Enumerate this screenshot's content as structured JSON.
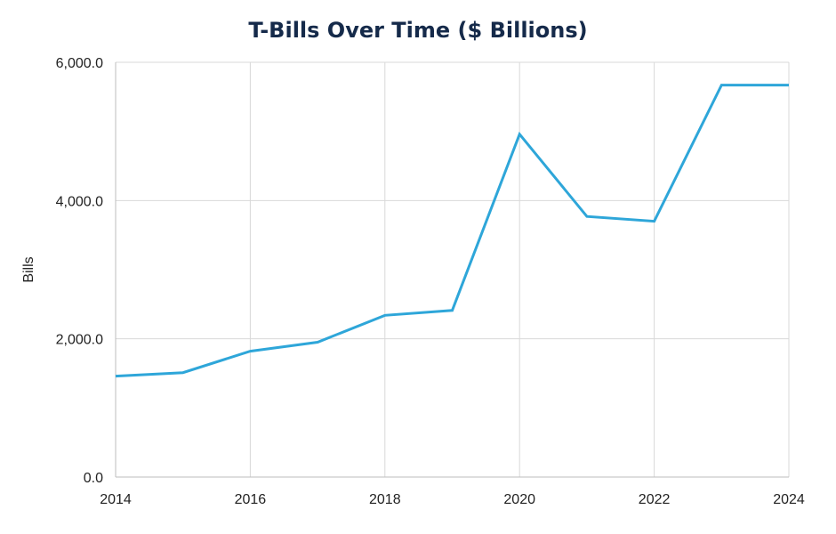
{
  "chart_data": {
    "type": "line",
    "title": "T-Bills Over Time ($ Billions)",
    "xlabel": "",
    "ylabel": "Bills",
    "xlim": [
      2014,
      2024
    ],
    "ylim": [
      0,
      6000
    ],
    "x_ticks": [
      2014,
      2016,
      2018,
      2020,
      2022,
      2024
    ],
    "x_tick_labels": [
      "2014",
      "2016",
      "2018",
      "2020",
      "2022",
      "2024"
    ],
    "y_ticks": [
      0,
      2000,
      4000,
      6000
    ],
    "y_tick_labels": [
      "0.0",
      "2,000.0",
      "4,000.0",
      "6,000.0"
    ],
    "grid": true,
    "legend": "none",
    "x": [
      2014,
      2015,
      2016,
      2017,
      2018,
      2019,
      2020,
      2021,
      2022,
      2023,
      2024
    ],
    "series": [
      {
        "values": [
          1460,
          1510,
          1820,
          1950,
          2340,
          2410,
          4960,
          3770,
          3700,
          5670,
          5670
        ],
        "color": "#2ea6d9"
      }
    ]
  }
}
